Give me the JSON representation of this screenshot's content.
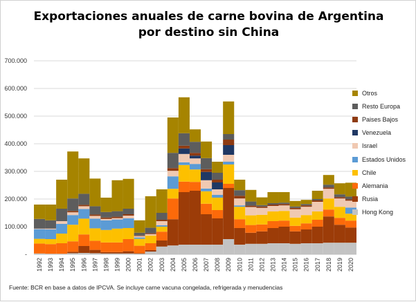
{
  "chart_data": {
    "type": "bar",
    "stacked": true,
    "title_lines": [
      "Exportaciones anuales de carne bovina de Argentina",
      "por destino sin China"
    ],
    "xlabel": "",
    "ylabel": "",
    "ylim": [
      0,
      700000
    ],
    "yticks": [
      "-",
      "100.000",
      "200.000",
      "300.000",
      "400.000",
      "500.000",
      "600.000",
      "700.000"
    ],
    "grid": true,
    "legend_position": "right",
    "categories": [
      "1992",
      "1993",
      "1994",
      "1995",
      "1996",
      "1997",
      "1998",
      "1999",
      "2000",
      "2001",
      "2002",
      "2003",
      "2004",
      "2005",
      "2006",
      "2007",
      "2008",
      "2009",
      "2010",
      "2011",
      "2012",
      "2013",
      "2014",
      "2015",
      "2016",
      "2017",
      "2018",
      "2019",
      "2020"
    ],
    "series": [
      {
        "name": "Hong Kong",
        "color": "#c3c3c3",
        "values": [
          3000,
          2000,
          2000,
          4000,
          5000,
          4000,
          3000,
          3000,
          3000,
          2000,
          10000,
          28000,
          32000,
          35000,
          35000,
          35000,
          35000,
          55000,
          35000,
          38000,
          38000,
          40000,
          40000,
          38000,
          40000,
          40000,
          42000,
          42000,
          42000
        ]
      },
      {
        "name": "Rusia",
        "color": "#9c3c08",
        "values": [
          0,
          0,
          0,
          5000,
          25000,
          12000,
          5000,
          5000,
          8000,
          2000,
          5000,
          22000,
          95000,
          190000,
          195000,
          110000,
          95000,
          185000,
          60000,
          40000,
          45000,
          55000,
          60000,
          45000,
          50000,
          60000,
          95000,
          65000,
          55000
        ]
      },
      {
        "name": "Alemania",
        "color": "#fc6a0a",
        "values": [
          36000,
          35000,
          38000,
          38000,
          42000,
          33000,
          35000,
          35000,
          44000,
          27000,
          25000,
          32000,
          75000,
          38000,
          32000,
          38000,
          30000,
          15000,
          32000,
          28000,
          25000,
          25000,
          22000,
          20000,
          22000,
          25000,
          25000,
          25000,
          25000
        ]
      },
      {
        "name": "Chile",
        "color": "#fdc000",
        "values": [
          17000,
          18000,
          35000,
          60000,
          57000,
          45000,
          45000,
          50000,
          40000,
          25000,
          28000,
          18000,
          35000,
          60000,
          45000,
          45000,
          45000,
          70000,
          45000,
          35000,
          35000,
          35000,
          35000,
          30000,
          30000,
          30000,
          40000,
          40000,
          25000
        ]
      },
      {
        "name": "Estados Unidos",
        "color": "#5b9bd5",
        "values": [
          35000,
          35000,
          35000,
          35000,
          35000,
          35000,
          35000,
          33000,
          35000,
          5000,
          0,
          5000,
          45000,
          10000,
          20000,
          10000,
          10000,
          10000,
          5000,
          0,
          0,
          0,
          0,
          0,
          0,
          0,
          0,
          0,
          22000
        ]
      },
      {
        "name": "Israel",
        "color": "#f0c9b2",
        "values": [
          2000,
          3000,
          10000,
          10000,
          10000,
          10000,
          5000,
          5000,
          10000,
          5000,
          5000,
          15000,
          20000,
          30000,
          20000,
          30000,
          20000,
          25000,
          25000,
          30000,
          25000,
          20000,
          20000,
          30000,
          30000,
          35000,
          35000,
          30000,
          25000
        ]
      },
      {
        "name": "Venezuela",
        "color": "#1f3864",
        "values": [
          0,
          0,
          0,
          0,
          0,
          0,
          0,
          0,
          0,
          0,
          0,
          0,
          0,
          20000,
          10000,
          30000,
          25000,
          35000,
          0,
          0,
          0,
          0,
          0,
          0,
          0,
          0,
          0,
          0,
          0
        ]
      },
      {
        "name": "Paises Bajos",
        "color": "#8e3b12",
        "values": [
          0,
          0,
          0,
          5000,
          5000,
          5000,
          5000,
          5000,
          5000,
          2000,
          3000,
          5000,
          10000,
          10000,
          10000,
          10000,
          10000,
          20000,
          10000,
          5000,
          5000,
          5000,
          5000,
          5000,
          5000,
          5000,
          5000,
          5000,
          5000
        ]
      },
      {
        "name": "Resto Europa",
        "color": "#5d5d5d",
        "values": [
          35000,
          30000,
          45000,
          45000,
          40000,
          30000,
          20000,
          20000,
          20000,
          10000,
          20000,
          25000,
          55000,
          45000,
          40000,
          40000,
          25000,
          20000,
          20000,
          15000,
          5000,
          5000,
          5000,
          5000,
          5000,
          5000,
          10000,
          10000,
          10000
        ]
      },
      {
        "name": "Otros",
        "color": "#a68400",
        "values": [
          52000,
          57000,
          105000,
          170000,
          128000,
          100000,
          52000,
          112000,
          108000,
          45000,
          114000,
          85000,
          128000,
          130000,
          45000,
          60000,
          40000,
          118000,
          38000,
          42000,
          28000,
          40000,
          38000,
          20000,
          15000,
          30000,
          35000,
          40000,
          50000
        ]
      }
    ]
  },
  "source": "Fuente: BCR en base a datos de IPCVA. Se incluye carne vacuna congelada, refrigerada y menudencias"
}
